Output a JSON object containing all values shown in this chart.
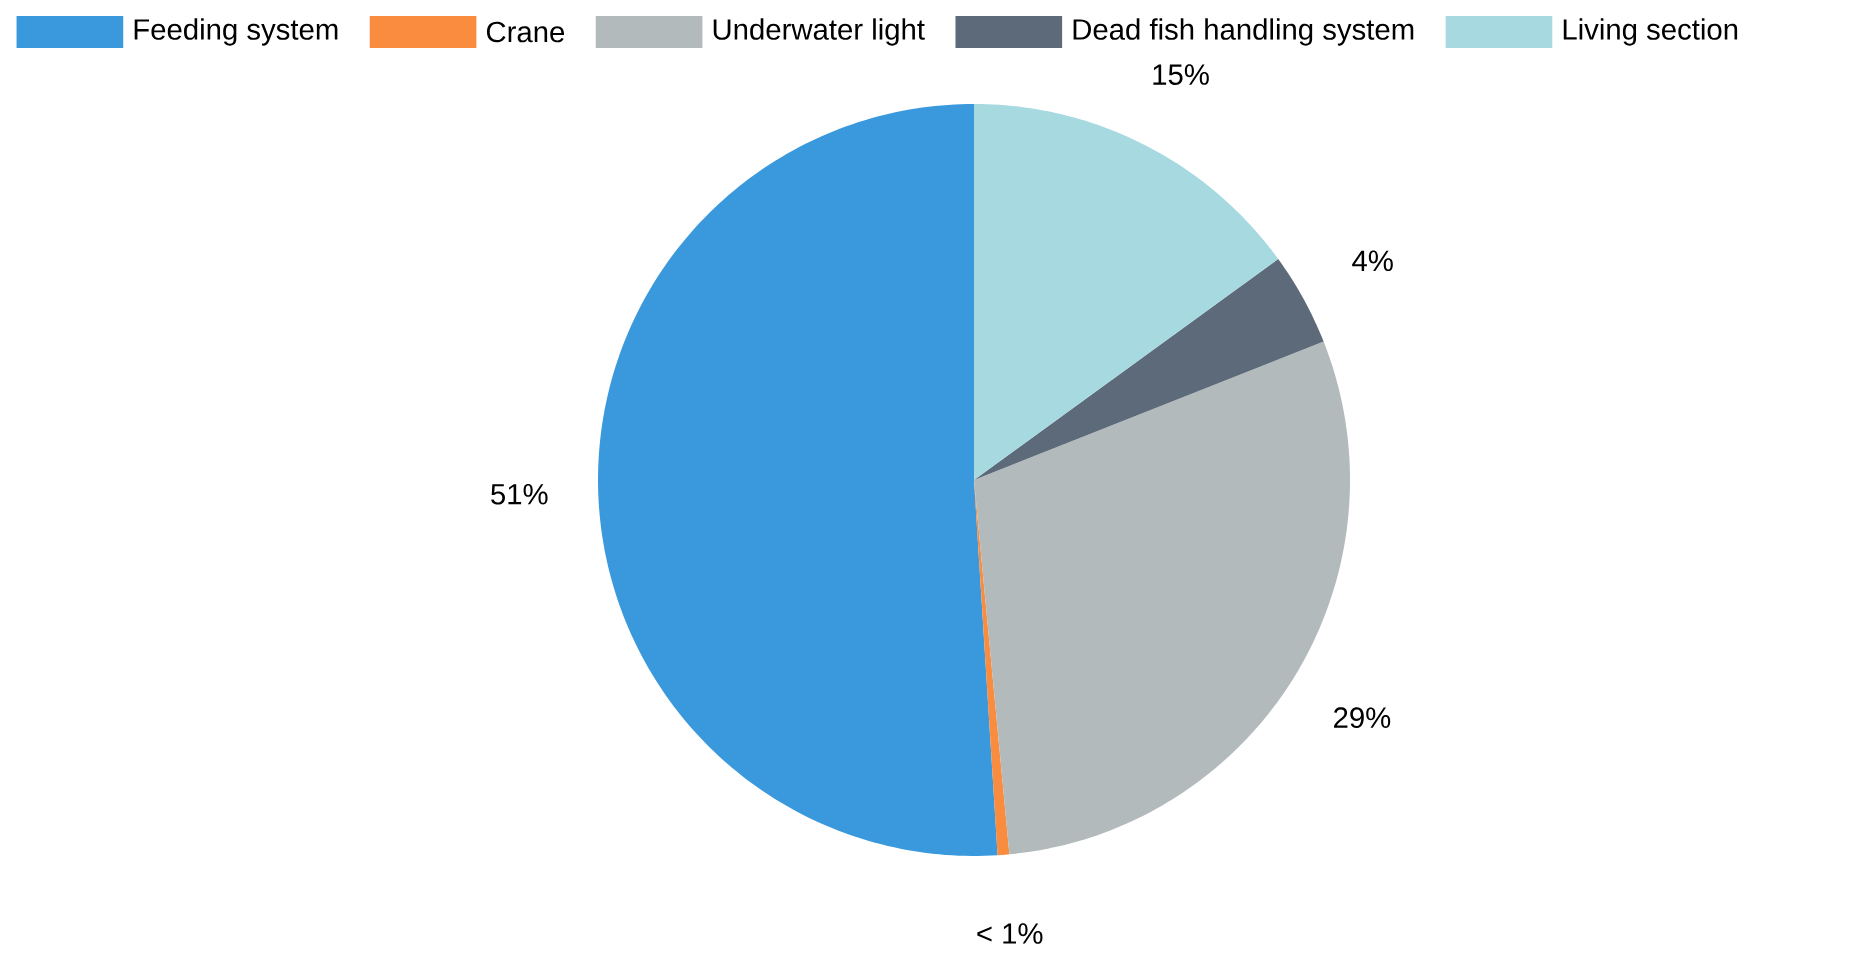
{
  "chart_data": {
    "type": "pie",
    "categories": [
      "Feeding system",
      "Crane",
      "Underwater light",
      "Dead fish handling system",
      "Living section"
    ],
    "values": [
      51,
      0.5,
      29.5,
      4,
      15
    ],
    "value_labels": [
      "51%",
      "< 1%",
      "29%",
      "4%",
      "15%"
    ],
    "colors": [
      "#3a99dc",
      "#f98c3f",
      "#b3babc",
      "#5d6a7a",
      "#a6d9e0"
    ],
    "legend": "top"
  }
}
